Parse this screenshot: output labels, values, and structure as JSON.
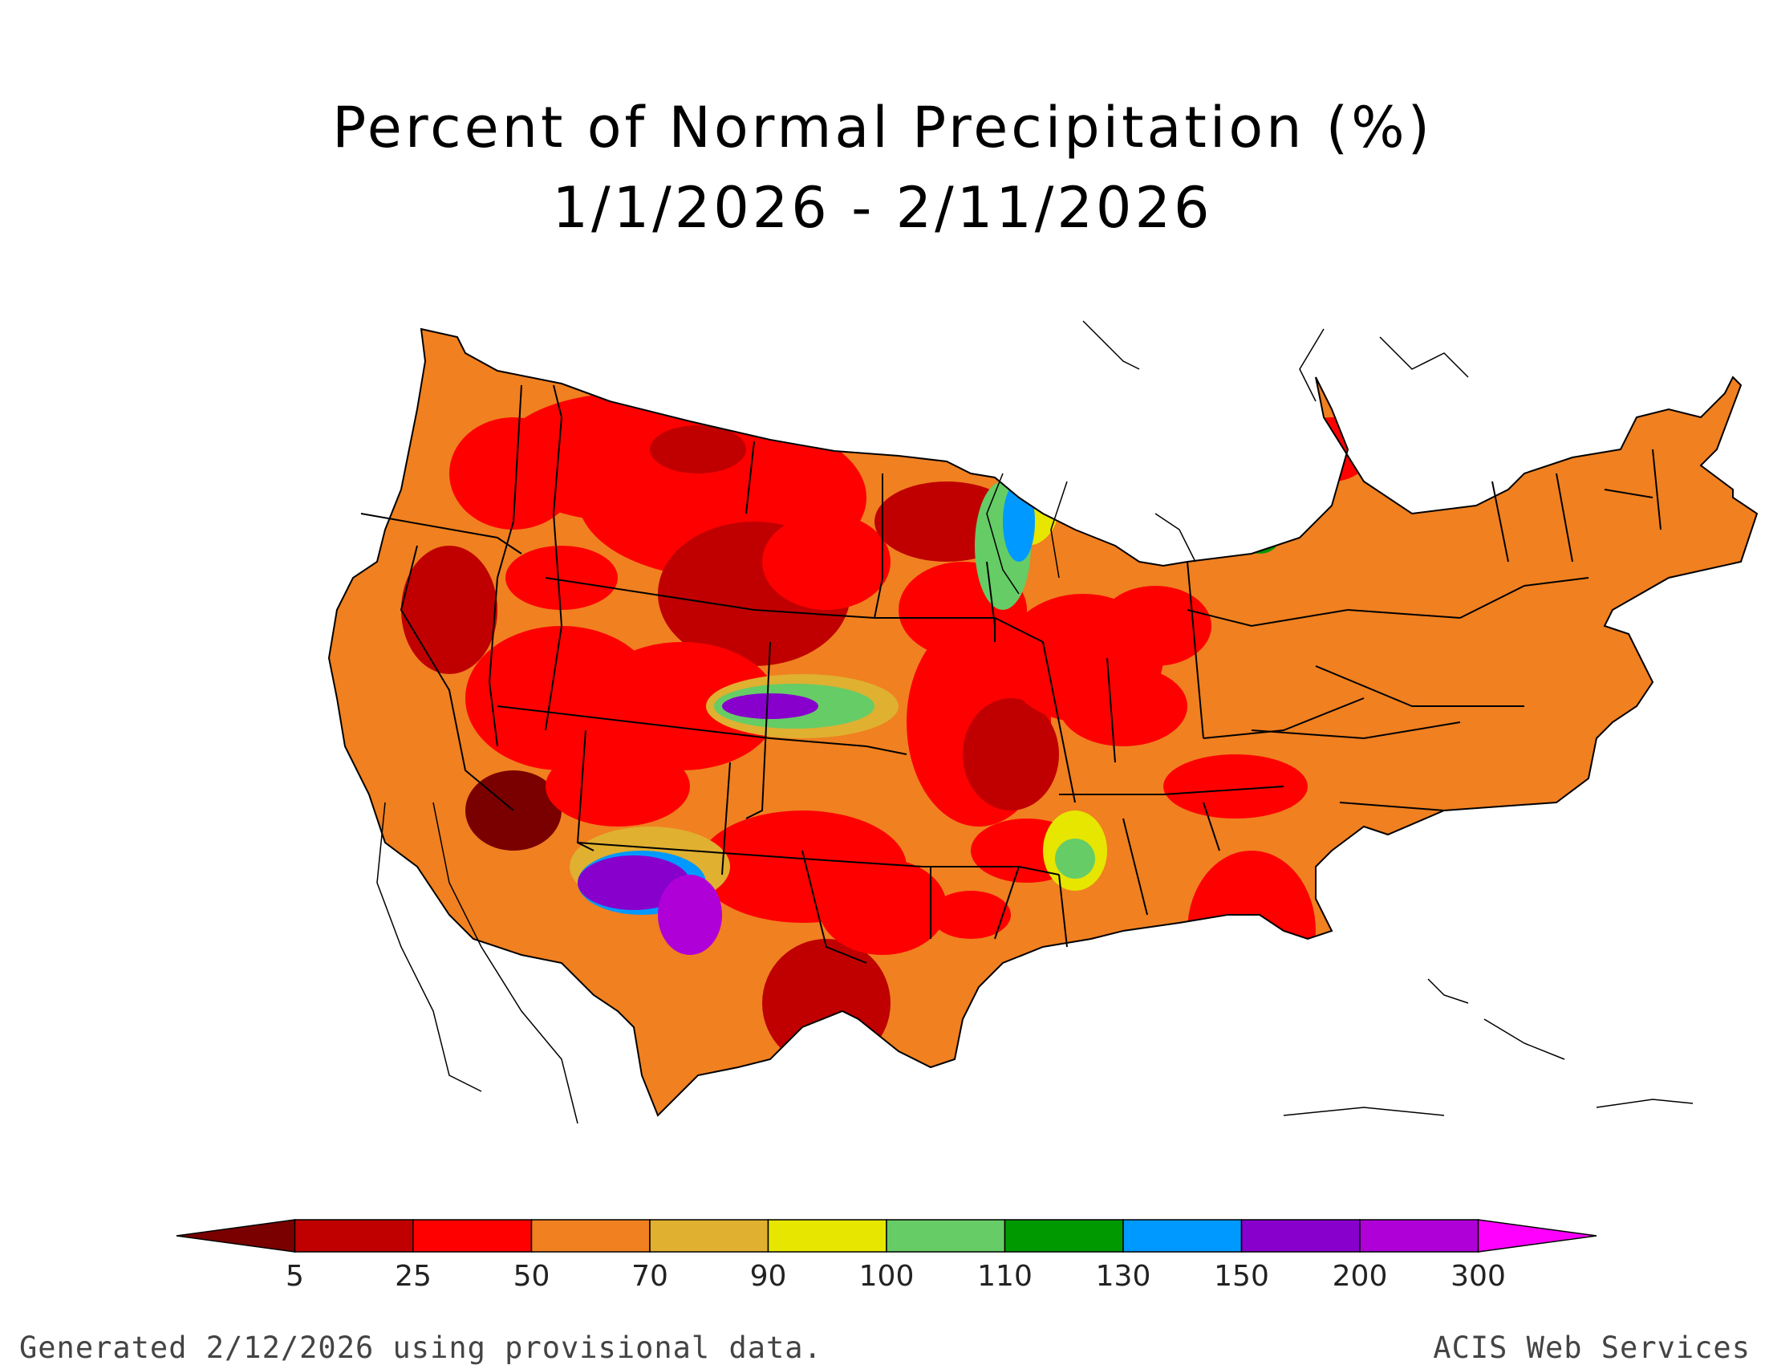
{
  "title": "Percent of Normal Precipitation (%)",
  "subtitle": "1/1/2026 - 2/11/2026",
  "legend": {
    "labels": [
      "5",
      "25",
      "50",
      "70",
      "90",
      "100",
      "110",
      "130",
      "150",
      "200",
      "300"
    ],
    "colors": [
      "#7a0000",
      "#c00000",
      "#ff0000",
      "#f08020",
      "#e0b030",
      "#e6e600",
      "#66cc66",
      "#009900",
      "#0099ff",
      "#8800cc",
      "#b000d8",
      "#ff00ff"
    ]
  },
  "footer_left": "Generated 2/12/2026 using provisional data.",
  "footer_right": "ACIS Web Services"
}
